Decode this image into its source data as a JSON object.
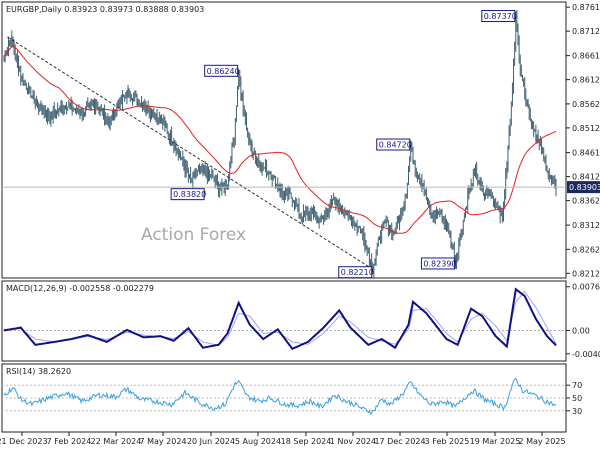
{
  "chart_data": [
    {
      "type": "candlestick",
      "title": "EURGBP,Daily 0.83923 0.83973 0.83888 0.83903",
      "watermark": "Action Forex",
      "ylim": [
        0.8207,
        0.8768
      ],
      "y_ticks": [
        "0.87615",
        "0.87120",
        "0.86615",
        "0.86120",
        "0.85620",
        "0.85125",
        "0.84615",
        "0.84120",
        "0.83625",
        "0.83120",
        "0.82620",
        "0.82125"
      ],
      "current_price": "0.83903",
      "x_tick_labels": [
        "21 Dec 2023",
        "7 Feb 2024",
        "22 Mar 2024",
        "7 May 2024",
        "20 Jun 2024",
        "5 Aug 2024",
        "18 Sep 2024",
        "1 Nov 2024",
        "17 Dec 2024",
        "3 Feb 2025",
        "19 Mar 2025",
        "2 May 2025"
      ],
      "annotations": [
        {
          "label": "0.83820",
          "value": 0.8382
        },
        {
          "label": "0.86240",
          "value": 0.8624
        },
        {
          "label": "0.82210",
          "value": 0.8221
        },
        {
          "label": "0.84720",
          "value": 0.8472
        },
        {
          "label": "0.82390",
          "value": 0.8239
        },
        {
          "label": "0.87370",
          "value": 0.8737
        }
      ],
      "close_anchors": [
        [
          0,
          0.866
        ],
        [
          6,
          0.87
        ],
        [
          15,
          0.862
        ],
        [
          28,
          0.8565
        ],
        [
          40,
          0.8535
        ],
        [
          55,
          0.856
        ],
        [
          68,
          0.8545
        ],
        [
          82,
          0.856
        ],
        [
          95,
          0.8525
        ],
        [
          104,
          0.857
        ],
        [
          112,
          0.8585
        ],
        [
          122,
          0.8565
        ],
        [
          132,
          0.8545
        ],
        [
          140,
          0.853
        ],
        [
          150,
          0.849
        ],
        [
          160,
          0.844
        ],
        [
          168,
          0.84
        ],
        [
          176,
          0.843
        ],
        [
          186,
          0.841
        ],
        [
          194,
          0.8385
        ],
        [
          200,
          0.84
        ],
        [
          206,
          0.85
        ],
        [
          210,
          0.8624
        ],
        [
          214,
          0.855
        ],
        [
          220,
          0.848
        ],
        [
          228,
          0.844
        ],
        [
          238,
          0.842
        ],
        [
          248,
          0.838
        ],
        [
          258,
          0.837
        ],
        [
          266,
          0.833
        ],
        [
          274,
          0.834
        ],
        [
          284,
          0.832
        ],
        [
          294,
          0.836
        ],
        [
          304,
          0.834
        ],
        [
          312,
          0.832
        ],
        [
          320,
          0.83
        ],
        [
          326,
          0.8255
        ],
        [
          330,
          0.8221
        ],
        [
          336,
          0.829
        ],
        [
          342,
          0.832
        ],
        [
          348,
          0.829
        ],
        [
          354,
          0.833
        ],
        [
          360,
          0.838
        ],
        [
          364,
          0.8472
        ],
        [
          368,
          0.843
        ],
        [
          374,
          0.84
        ],
        [
          382,
          0.833
        ],
        [
          390,
          0.834
        ],
        [
          398,
          0.83
        ],
        [
          404,
          0.8239
        ],
        [
          410,
          0.831
        ],
        [
          416,
          0.838
        ],
        [
          422,
          0.842
        ],
        [
          428,
          0.838
        ],
        [
          434,
          0.838
        ],
        [
          440,
          0.836
        ],
        [
          446,
          0.833
        ],
        [
          450,
          0.844
        ],
        [
          454,
          0.856
        ],
        [
          458,
          0.8737
        ],
        [
          462,
          0.864
        ],
        [
          466,
          0.859
        ],
        [
          470,
          0.854
        ],
        [
          476,
          0.85
        ],
        [
          480,
          0.847
        ],
        [
          486,
          0.843
        ],
        [
          490,
          0.84
        ],
        [
          494,
          0.839
        ]
      ],
      "moving_average": {
        "color": "#e02020",
        "period": 50
      }
    },
    {
      "type": "line",
      "title": "MACD(12,26,9) -0.002558 -0.002279",
      "y_ticks": [
        "0.007623",
        "0.00",
        "-0.004073"
      ],
      "ylim": [
        -0.0048,
        0.0081
      ],
      "series": [
        {
          "name": "MACD",
          "color": "#101080",
          "anchors": [
            [
              0,
              0.0
            ],
            [
              15,
              0.0005
            ],
            [
              28,
              -0.0025
            ],
            [
              45,
              -0.002
            ],
            [
              60,
              -0.0015
            ],
            [
              75,
              -0.0008
            ],
            [
              92,
              -0.002
            ],
            [
              110,
              0.0001
            ],
            [
              125,
              -0.0012
            ],
            [
              140,
              -0.001
            ],
            [
              152,
              -0.0018
            ],
            [
              165,
              0.0004
            ],
            [
              178,
              -0.003
            ],
            [
              192,
              -0.0025
            ],
            [
              200,
              -0.0005
            ],
            [
              210,
              0.0048
            ],
            [
              220,
              0.001
            ],
            [
              232,
              -0.0015
            ],
            [
              245,
              0.0002
            ],
            [
              258,
              -0.0032
            ],
            [
              272,
              -0.002
            ],
            [
              286,
              0.0005
            ],
            [
              300,
              0.0035
            ],
            [
              310,
              0.0005
            ],
            [
              326,
              -0.0025
            ],
            [
              338,
              -0.0015
            ],
            [
              350,
              -0.003
            ],
            [
              362,
              0.001
            ],
            [
              366,
              0.005
            ],
            [
              378,
              0.003
            ],
            [
              388,
              0.0005
            ],
            [
              396,
              -0.0015
            ],
            [
              406,
              -0.0025
            ],
            [
              418,
              0.0038
            ],
            [
              428,
              0.0025
            ],
            [
              440,
              -0.001
            ],
            [
              450,
              -0.0028
            ],
            [
              458,
              0.0072
            ],
            [
              466,
              0.006
            ],
            [
              476,
              0.002
            ],
            [
              486,
              -0.001
            ],
            [
              494,
              -0.0026
            ]
          ]
        },
        {
          "name": "Signal",
          "color": "#a0a0ff",
          "anchors": [
            [
              0,
              0.0002
            ],
            [
              15,
              0.0003
            ],
            [
              28,
              -0.0015
            ],
            [
              45,
              -0.002
            ],
            [
              60,
              -0.0016
            ],
            [
              75,
              -0.001
            ],
            [
              92,
              -0.0016
            ],
            [
              110,
              -0.0003
            ],
            [
              125,
              -0.0008
            ],
            [
              140,
              -0.0011
            ],
            [
              152,
              -0.0014
            ],
            [
              165,
              -0.0002
            ],
            [
              178,
              -0.002
            ],
            [
              192,
              -0.0026
            ],
            [
              200,
              -0.0012
            ],
            [
              210,
              0.003
            ],
            [
              220,
              0.0025
            ],
            [
              232,
              -0.0005
            ],
            [
              245,
              -0.0003
            ],
            [
              258,
              -0.002
            ],
            [
              272,
              -0.0024
            ],
            [
              286,
              -0.0005
            ],
            [
              300,
              0.0025
            ],
            [
              310,
              0.0015
            ],
            [
              326,
              -0.0012
            ],
            [
              338,
              -0.0018
            ],
            [
              350,
              -0.0024
            ],
            [
              362,
              0.0002
            ],
            [
              366,
              0.0035
            ],
            [
              378,
              0.0038
            ],
            [
              388,
              0.0015
            ],
            [
              396,
              -0.0005
            ],
            [
              406,
              -0.002
            ],
            [
              418,
              0.002
            ],
            [
              428,
              0.003
            ],
            [
              440,
              0.0008
            ],
            [
              450,
              -0.0018
            ],
            [
              458,
              0.005
            ],
            [
              466,
              0.0068
            ],
            [
              476,
              0.004
            ],
            [
              486,
              0.0005
            ],
            [
              494,
              -0.0023
            ]
          ]
        }
      ]
    },
    {
      "type": "line",
      "title": "RSI(14) 38.2620",
      "y_ticks": [
        "70",
        "50",
        "30"
      ],
      "ylim": [
        0,
        100
      ],
      "series": [
        {
          "name": "RSI",
          "color": "#3aa0e0",
          "anchors": [
            [
              0,
              55
            ],
            [
              8,
              66
            ],
            [
              15,
              48
            ],
            [
              25,
              40
            ],
            [
              40,
              50
            ],
            [
              55,
              58
            ],
            [
              70,
              45
            ],
            [
              85,
              55
            ],
            [
              100,
              52
            ],
            [
              110,
              64
            ],
            [
              122,
              48
            ],
            [
              135,
              45
            ],
            [
              150,
              40
            ],
            [
              162,
              58
            ],
            [
              176,
              42
            ],
            [
              188,
              34
            ],
            [
              198,
              40
            ],
            [
              206,
              70
            ],
            [
              210,
              75
            ],
            [
              218,
              52
            ],
            [
              228,
              45
            ],
            [
              238,
              50
            ],
            [
              252,
              40
            ],
            [
              262,
              38
            ],
            [
              274,
              45
            ],
            [
              284,
              36
            ],
            [
              296,
              55
            ],
            [
              306,
              45
            ],
            [
              314,
              40
            ],
            [
              322,
              32
            ],
            [
              330,
              28
            ],
            [
              338,
              48
            ],
            [
              346,
              40
            ],
            [
              356,
              55
            ],
            [
              364,
              74
            ],
            [
              372,
              55
            ],
            [
              382,
              40
            ],
            [
              394,
              45
            ],
            [
              404,
              36
            ],
            [
              412,
              50
            ],
            [
              420,
              62
            ],
            [
              430,
              48
            ],
            [
              440,
              40
            ],
            [
              448,
              35
            ],
            [
              454,
              65
            ],
            [
              458,
              80
            ],
            [
              464,
              62
            ],
            [
              474,
              55
            ],
            [
              484,
              46
            ],
            [
              494,
              38
            ]
          ]
        }
      ]
    }
  ]
}
